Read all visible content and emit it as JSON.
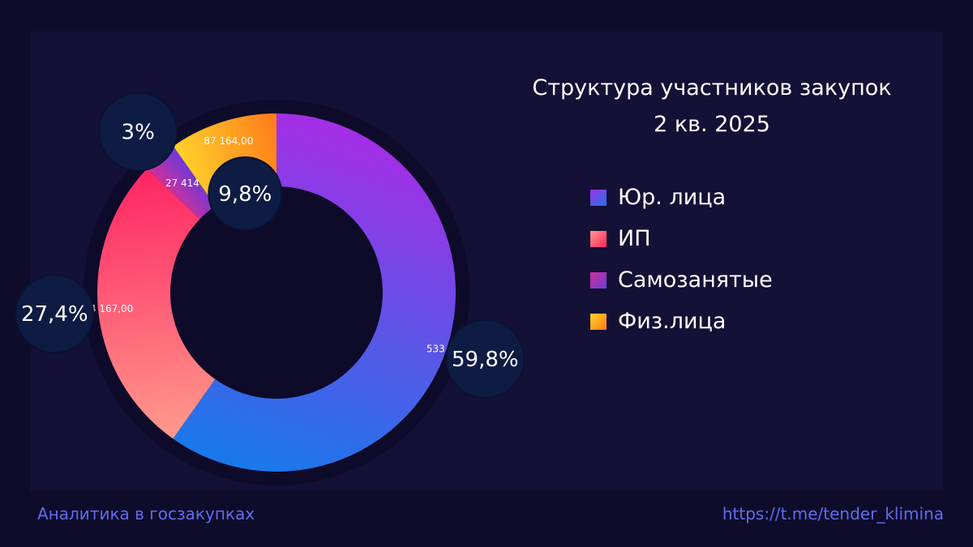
{
  "title": {
    "line1": "Структура участников закупок",
    "line2": "2 кв. 2025"
  },
  "footer": {
    "left": "Аналитика в госзакупках",
    "right": "https://t.me/tender_klimina"
  },
  "chart_data": {
    "type": "pie",
    "donut": true,
    "title": "Структура участников закупок 2 кв. 2025",
    "legend_position": "right",
    "series": [
      {
        "name": "Юр. лица",
        "value": 533691.0,
        "value_label": "533 691,00",
        "percent_label": "59,8%",
        "colors": [
          "#a22fe6",
          "#1b78ea"
        ]
      },
      {
        "name": "ИП",
        "value": 244167.0,
        "value_label": "244 167,00",
        "percent_label": "27,4%",
        "colors": [
          "#ff9a8c",
          "#ff2463"
        ]
      },
      {
        "name": "Самозанятые",
        "value": 27414,
        "value_label": "27 414",
        "percent_label": "3%",
        "colors": [
          "#d0309a",
          "#6a3ad8"
        ]
      },
      {
        "name": "Физ.лица",
        "value": 87164.0,
        "value_label": "87 164,00",
        "percent_label": "9,8%",
        "colors": [
          "#ffd22a",
          "#ff7a1a"
        ]
      }
    ]
  }
}
